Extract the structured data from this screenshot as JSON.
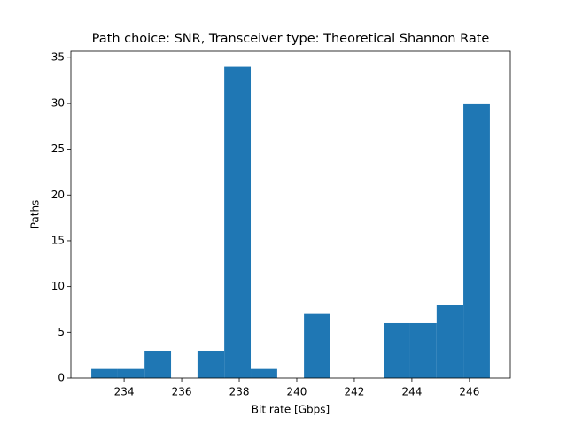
{
  "chart_data": {
    "type": "histogram",
    "title": "Path choice: SNR, Transceiver type: Theoretical Shannon Rate",
    "x_label": "Bit rate [Gbps]",
    "y_label": "Paths",
    "bins": [
      232.86,
      233.78,
      234.71,
      235.63,
      236.55,
      237.48,
      238.4,
      239.32,
      240.25,
      241.17,
      242.09,
      243.02,
      243.94,
      244.86,
      245.79,
      246.71
    ],
    "values": [
      1,
      1,
      3,
      0,
      3,
      34,
      1,
      0,
      7,
      0,
      0,
      6,
      6,
      8,
      30
    ],
    "color": "#1f77b4",
    "xlim": [
      232.15,
      247.42
    ],
    "xticks": [
      234,
      236,
      238,
      240,
      242,
      244,
      246
    ],
    "ylim": [
      0,
      35.7
    ],
    "yticks": [
      0,
      5,
      10,
      15,
      20,
      25,
      30,
      35
    ]
  }
}
